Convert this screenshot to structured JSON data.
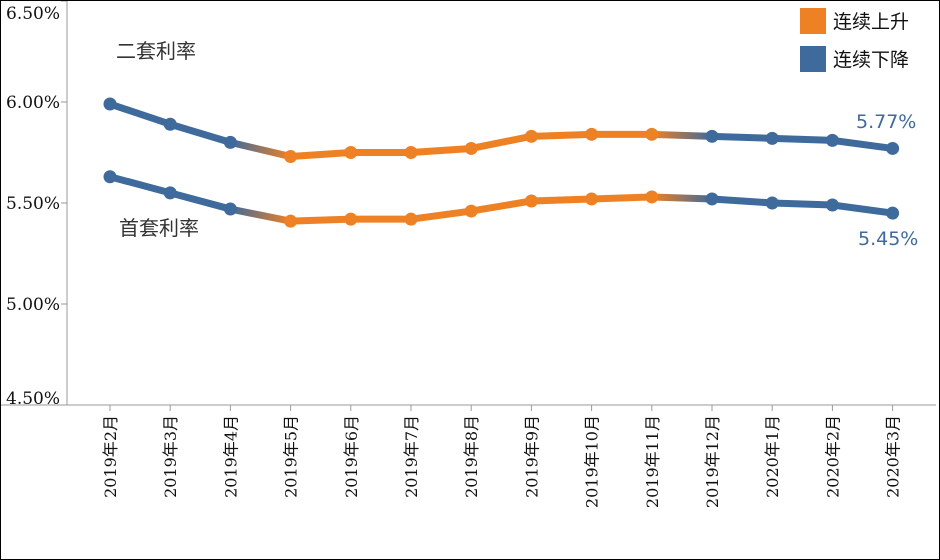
{
  "chart_data": {
    "type": "line",
    "categories": [
      "2019年2月",
      "2019年3月",
      "2019年4月",
      "2019年5月",
      "2019年6月",
      "2019年7月",
      "2019年8月",
      "2019年9月",
      "2019年10月",
      "2019年11月",
      "2019年12月",
      "2020年1月",
      "2020年2月",
      "2020年3月"
    ],
    "yticks": [
      "6.50%",
      "6.00%",
      "5.50%",
      "5.00%",
      "4.50%"
    ],
    "ylim": [
      4.5,
      6.5
    ],
    "grid": false,
    "series": [
      {
        "name": "二套利率",
        "values": [
          5.99,
          5.89,
          5.8,
          5.73,
          5.75,
          5.75,
          5.77,
          5.83,
          5.84,
          5.84,
          5.83,
          5.82,
          5.81,
          5.77
        ],
        "trend": [
          "down",
          "down",
          "down",
          "up",
          "up",
          "up",
          "up",
          "up",
          "up",
          "up",
          "down",
          "down",
          "down",
          "down"
        ],
        "end_label": "5.77%"
      },
      {
        "name": "首套利率",
        "values": [
          5.63,
          5.55,
          5.47,
          5.41,
          5.42,
          5.42,
          5.46,
          5.51,
          5.52,
          5.53,
          5.52,
          5.5,
          5.49,
          5.45
        ],
        "trend": [
          "down",
          "down",
          "down",
          "up",
          "up",
          "up",
          "up",
          "up",
          "up",
          "up",
          "down",
          "down",
          "down",
          "down"
        ],
        "end_label": "5.45%"
      }
    ],
    "legend": {
      "position": "top-right",
      "items": [
        {
          "label": "连续上升",
          "color": "#ee8124"
        },
        {
          "label": "连续下降",
          "color": "#3f6a9c"
        }
      ]
    },
    "colors": {
      "up": "#ee8124",
      "down": "#3f6a9c",
      "axis": "#9a9a9a"
    }
  }
}
